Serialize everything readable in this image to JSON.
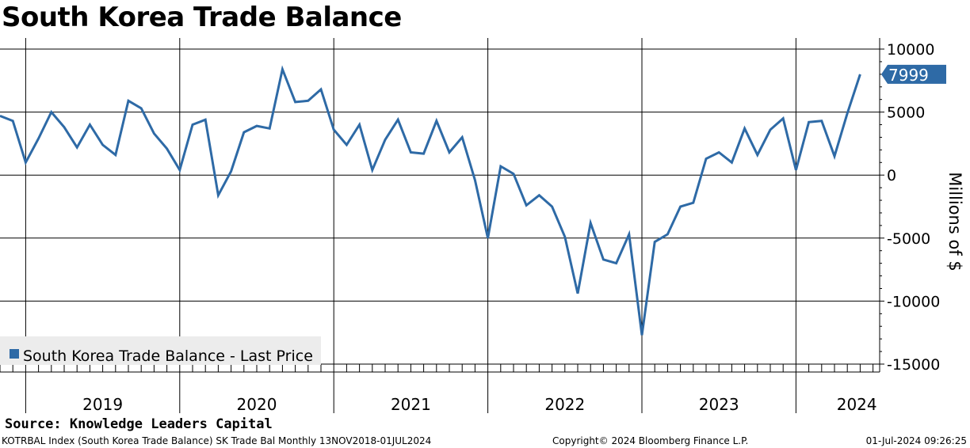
{
  "title": "South Korea Trade Balance",
  "source": "Source: Knowledge Leaders Capital",
  "footer": {
    "left": "KOTRBAL Index (South Korea Trade Balance) SK Trade Bal  Monthly 13NOV2018-01JUL2024",
    "center": "Copyright© 2024 Bloomberg Finance L.P.",
    "right": "01-Jul-2024 09:26:25"
  },
  "colors": {
    "series": "#2e6aa6",
    "last_price_box": "#2e6aa6",
    "legend_bg": "#ececec"
  },
  "chart_data": {
    "type": "line",
    "ylabel": "Millions of $",
    "ylim": [
      -15500,
      10500
    ],
    "yticks": [
      10000,
      5000,
      0,
      -5000,
      -10000,
      -15000
    ],
    "ytick_labels": [
      "10000",
      "5000",
      "0",
      "-5000",
      "-10000",
      "-15000"
    ],
    "year_labels": [
      "2019",
      "2020",
      "2021",
      "2022",
      "2023",
      "2024"
    ],
    "legend": "South Korea Trade Balance - Last Price",
    "last_price_label": "7999",
    "grid": true,
    "series": [
      {
        "name": "South Korea Trade Balance",
        "x": [
          "2018-11",
          "2018-12",
          "2019-01",
          "2019-02",
          "2019-03",
          "2019-04",
          "2019-05",
          "2019-06",
          "2019-07",
          "2019-08",
          "2019-09",
          "2019-10",
          "2019-11",
          "2019-12",
          "2020-01",
          "2020-02",
          "2020-03",
          "2020-04",
          "2020-05",
          "2020-06",
          "2020-07",
          "2020-08",
          "2020-09",
          "2020-10",
          "2020-11",
          "2020-12",
          "2021-01",
          "2021-02",
          "2021-03",
          "2021-04",
          "2021-05",
          "2021-06",
          "2021-07",
          "2021-08",
          "2021-09",
          "2021-10",
          "2021-11",
          "2021-12",
          "2022-01",
          "2022-02",
          "2022-03",
          "2022-04",
          "2022-05",
          "2022-06",
          "2022-07",
          "2022-08",
          "2022-09",
          "2022-10",
          "2022-11",
          "2022-12",
          "2023-01",
          "2023-02",
          "2023-03",
          "2023-04",
          "2023-05",
          "2023-06",
          "2023-07",
          "2023-08",
          "2023-09",
          "2023-10",
          "2023-11",
          "2023-12",
          "2024-01",
          "2024-02",
          "2024-03",
          "2024-04",
          "2024-05",
          "2024-06"
        ],
        "values": [
          4700,
          4300,
          1000,
          2900,
          5000,
          3800,
          2200,
          4000,
          2400,
          1600,
          5900,
          5300,
          3300,
          2100,
          400,
          4000,
          4400,
          -1600,
          300,
          3400,
          3900,
          3700,
          8400,
          5800,
          5900,
          6800,
          3600,
          2400,
          4000,
          400,
          2800,
          4400,
          1800,
          1700,
          4300,
          1800,
          3000,
          -400,
          -5000,
          700,
          100,
          -2400,
          -1600,
          -2500,
          -4900,
          -9400,
          -3800,
          -6700,
          -7000,
          -4700,
          -12700,
          -5300,
          -4700,
          -2500,
          -2200,
          1300,
          1800,
          1000,
          3700,
          1600,
          3600,
          4500,
          400,
          4200,
          4300,
          1500,
          4900,
          7999
        ]
      }
    ]
  }
}
